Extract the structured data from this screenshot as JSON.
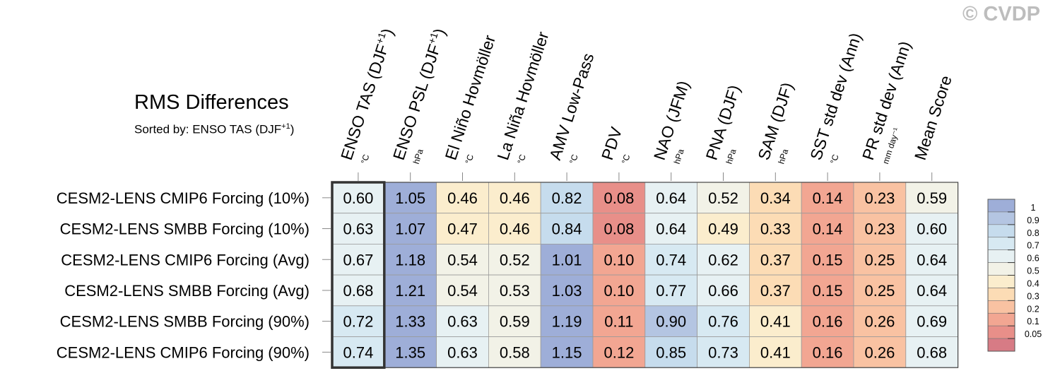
{
  "watermark": "© CVDP",
  "chart_data": {
    "type": "heatmap",
    "title": "RMS Differences",
    "subtitle_prefix": "Sorted by: ENSO TAS (DJF",
    "subtitle_sup": "+1",
    "subtitle_suffix": ")",
    "columns": [
      {
        "label": "ENSO TAS (DJF",
        "sup": "+1",
        "close": ")",
        "unit": "°C"
      },
      {
        "label": "ENSO PSL (DJF",
        "sup": "+1",
        "close": ")",
        "unit": "hPa"
      },
      {
        "label": "El Niño Hovmöller",
        "sup": "",
        "close": "",
        "unit": "°C"
      },
      {
        "label": "La Niña Hovmöller",
        "sup": "",
        "close": "",
        "unit": "°C"
      },
      {
        "label": "AMV Low-Pass",
        "sup": "",
        "close": "",
        "unit": "°C"
      },
      {
        "label": "PDV",
        "sup": "",
        "close": "",
        "unit": "°C"
      },
      {
        "label": "NAO (JFM)",
        "sup": "",
        "close": "",
        "unit": "hPa"
      },
      {
        "label": "PNA (DJF)",
        "sup": "",
        "close": "",
        "unit": "hPa"
      },
      {
        "label": "SAM (DJF)",
        "sup": "",
        "close": "",
        "unit": "hPa"
      },
      {
        "label": "SST std dev (Ann)",
        "sup": "",
        "close": "",
        "unit": "°C"
      },
      {
        "label": "PR std dev (Ann)",
        "sup": "",
        "close": "",
        "unit": "mm day⁻¹"
      },
      {
        "label": "Mean Score",
        "sup": "",
        "close": "",
        "unit": ""
      }
    ],
    "rows": [
      "CESM2-LENS CMIP6 Forcing (10%)",
      "CESM2-LENS SMBB Forcing (10%)",
      "CESM2-LENS CMIP6 Forcing (Avg)",
      "CESM2-LENS SMBB Forcing (Avg)",
      "CESM2-LENS SMBB Forcing (90%)",
      "CESM2-LENS CMIP6 Forcing (90%)"
    ],
    "values": [
      [
        "0.60",
        "1.05",
        "0.46",
        "0.46",
        "0.82",
        "0.08",
        "0.64",
        "0.52",
        "0.34",
        "0.14",
        "0.23",
        "0.59"
      ],
      [
        "0.63",
        "1.07",
        "0.47",
        "0.46",
        "0.84",
        "0.08",
        "0.64",
        "0.49",
        "0.33",
        "0.14",
        "0.23",
        "0.60"
      ],
      [
        "0.67",
        "1.18",
        "0.54",
        "0.52",
        "1.01",
        "0.10",
        "0.74",
        "0.62",
        "0.37",
        "0.15",
        "0.25",
        "0.64"
      ],
      [
        "0.68",
        "1.21",
        "0.54",
        "0.53",
        "1.03",
        "0.10",
        "0.77",
        "0.66",
        "0.37",
        "0.15",
        "0.25",
        "0.64"
      ],
      [
        "0.72",
        "1.33",
        "0.63",
        "0.59",
        "1.19",
        "0.11",
        "0.90",
        "0.76",
        "0.41",
        "0.16",
        "0.26",
        "0.69"
      ],
      [
        "0.74",
        "1.35",
        "0.63",
        "0.58",
        "1.15",
        "0.12",
        "0.85",
        "0.73",
        "0.41",
        "0.16",
        "0.26",
        "0.68"
      ]
    ],
    "highlighted_column": 0,
    "colorbar": {
      "levels": [
        "1",
        "0.9",
        "0.8",
        "0.7",
        "0.6",
        "0.5",
        "0.4",
        "0.3",
        "0.2",
        "0.1",
        "0.05"
      ],
      "colors": [
        "#9eaed8",
        "#b4c5e2",
        "#c6dced",
        "#d7e9f2",
        "#e7f1f3",
        "#f2f2e7",
        "#fbedcd",
        "#fcdcb5",
        "#f9c2a2",
        "#f2a692",
        "#e88f89",
        "#d77b85"
      ]
    }
  }
}
